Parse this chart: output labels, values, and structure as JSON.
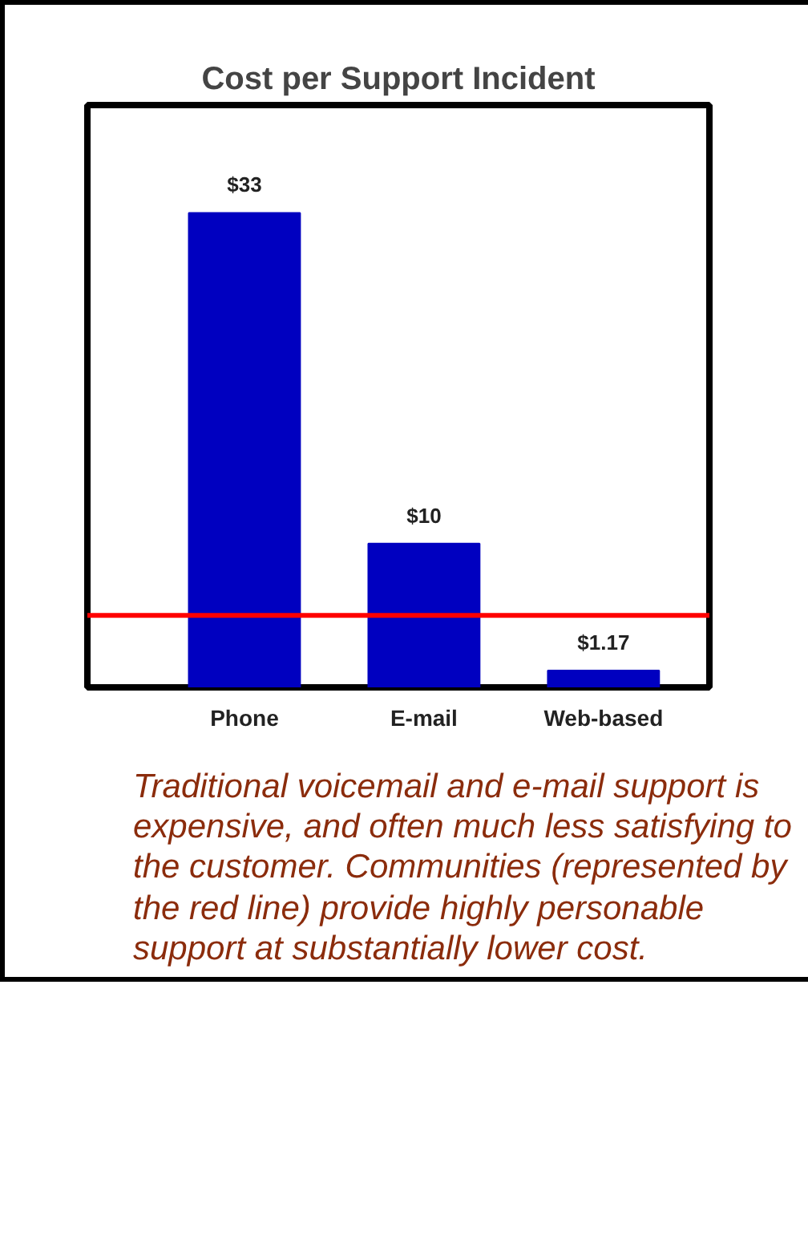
{
  "chart_data": {
    "type": "bar",
    "title": "Cost per Support Incident",
    "categories": [
      "Phone",
      "E-mail",
      "Web-based"
    ],
    "values": [
      33,
      10,
      1.17
    ],
    "color": "#0000c0",
    "value_labels": [
      "$33",
      "$10",
      "$1.17"
    ],
    "ref_lines": [
      {
        "axis": "y",
        "value": 5,
        "label": null,
        "color": "#ff0000"
      }
    ],
    "ylim": [
      0,
      40.5
    ],
    "tick_labels": "x",
    "grid": false,
    "annotations": [
      "Traditional voicemail and e-mail support is expensive, and often much less satisfying to the customer. Communities (represented by the red line) provide highly personable support at substantially lower cost."
    ]
  }
}
